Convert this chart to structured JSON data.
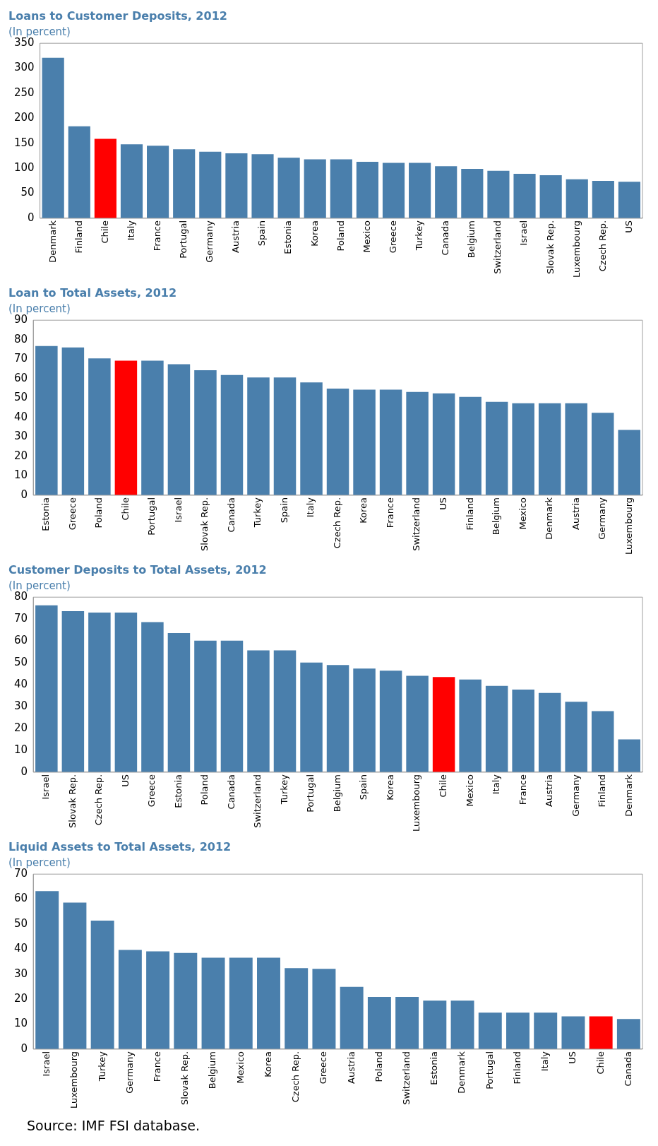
{
  "chart_data": [
    {
      "type": "bar",
      "title": "Loans to Customer Deposits, 2012",
      "subtitle": "(In percent)",
      "categories": [
        "Denmark",
        "Finland",
        "Chile",
        "Italy",
        "France",
        "Portugal",
        "Germany",
        "Austria",
        "Spain",
        "Estonia",
        "Korea",
        "Poland",
        "Mexico",
        "Greece",
        "Turkey",
        "Canada",
        "Belgium",
        "Switzerland",
        "Israel",
        "Slovak Rep.",
        "Luxembourg",
        "Czech Rep.",
        "US"
      ],
      "values": [
        321,
        184,
        159,
        148,
        145,
        138,
        133,
        130,
        128,
        121,
        118,
        118,
        113,
        111,
        111,
        104,
        99,
        95,
        89,
        86,
        78,
        75,
        73
      ],
      "colors": [
        "#4a7fac",
        "#4a7fac",
        "#ff0000",
        "#4a7fac",
        "#4a7fac",
        "#4a7fac",
        "#4a7fac",
        "#4a7fac",
        "#4a7fac",
        "#4a7fac",
        "#4a7fac",
        "#4a7fac",
        "#4a7fac",
        "#4a7fac",
        "#4a7fac",
        "#4a7fac",
        "#4a7fac",
        "#4a7fac",
        "#4a7fac",
        "#4a7fac",
        "#4a7fac",
        "#4a7fac",
        "#4a7fac"
      ],
      "ylim": [
        0,
        350
      ],
      "yticks": [
        0,
        50,
        100,
        150,
        200,
        250,
        300,
        350
      ],
      "grid": false
    },
    {
      "type": "bar",
      "title": "Loan to Total Assets, 2012",
      "subtitle": "(In percent)",
      "categories": [
        "Estonia",
        "Greece",
        "Poland",
        "Chile",
        "Portugal",
        "Israel",
        "Slovak Rep.",
        "Canada",
        "Turkey",
        "Spain",
        "Italy",
        "Czech Rep.",
        "Korea",
        "France",
        "Switzerland",
        "US",
        "Finland",
        "Belgium",
        "Mexico",
        "Denmark",
        "Austria",
        "Germany",
        "Luxembourg"
      ],
      "values": [
        76.7,
        76,
        70.4,
        69.2,
        69.2,
        67.4,
        64.3,
        61.8,
        60.6,
        60.6,
        58,
        54.8,
        54.3,
        54.3,
        53.1,
        52.4,
        50.6,
        48,
        47.3,
        47.3,
        47.3,
        42.4,
        33.6
      ],
      "colors": [
        "#4a7fac",
        "#4a7fac",
        "#4a7fac",
        "#ff0000",
        "#4a7fac",
        "#4a7fac",
        "#4a7fac",
        "#4a7fac",
        "#4a7fac",
        "#4a7fac",
        "#4a7fac",
        "#4a7fac",
        "#4a7fac",
        "#4a7fac",
        "#4a7fac",
        "#4a7fac",
        "#4a7fac",
        "#4a7fac",
        "#4a7fac",
        "#4a7fac",
        "#4a7fac",
        "#4a7fac",
        "#4a7fac"
      ],
      "ylim": [
        0,
        90
      ],
      "yticks": [
        0,
        10,
        20,
        30,
        40,
        50,
        60,
        70,
        80,
        90
      ],
      "grid": false
    },
    {
      "type": "bar",
      "title": "Customer Deposits to Total Assets, 2012",
      "subtitle": "(In percent)",
      "categories": [
        "Israel",
        "Slovak Rep.",
        "Czech Rep.",
        "US",
        "Greece",
        "Estonia",
        "Poland",
        "Canada",
        "Switzerland",
        "Turkey",
        "Portugal",
        "Belgium",
        "Spain",
        "Korea",
        "Luxembourg",
        "Chile",
        "Mexico",
        "Italy",
        "France",
        "Austria",
        "Germany",
        "Finland",
        "Denmark"
      ],
      "values": [
        76.3,
        73.6,
        73,
        73,
        68.6,
        63.6,
        60.1,
        60.1,
        55.7,
        55.7,
        50.1,
        49,
        47.4,
        46.4,
        44.1,
        43.5,
        42.4,
        39.5,
        37.8,
        36.2,
        32.2,
        27.9,
        15
      ],
      "colors": [
        "#4a7fac",
        "#4a7fac",
        "#4a7fac",
        "#4a7fac",
        "#4a7fac",
        "#4a7fac",
        "#4a7fac",
        "#4a7fac",
        "#4a7fac",
        "#4a7fac",
        "#4a7fac",
        "#4a7fac",
        "#4a7fac",
        "#4a7fac",
        "#4a7fac",
        "#ff0000",
        "#4a7fac",
        "#4a7fac",
        "#4a7fac",
        "#4a7fac",
        "#4a7fac",
        "#4a7fac",
        "#4a7fac"
      ],
      "ylim": [
        0,
        80
      ],
      "yticks": [
        0,
        10,
        20,
        30,
        40,
        50,
        60,
        70,
        80
      ],
      "grid": false
    },
    {
      "type": "bar",
      "title": "Liquid Assets to Total Assets, 2012",
      "subtitle": "(In percent)",
      "categories": [
        "Israel",
        "Luxembourg",
        "Turkey",
        "Germany",
        "France",
        "Slovak Rep.",
        "Belgium",
        "Mexico",
        "Korea",
        "Czech Rep.",
        "Greece",
        "Austria",
        "Poland",
        "Switzerland",
        "Estonia",
        "Denmark",
        "Portugal",
        "Finland",
        "Italy",
        "US",
        "Chile",
        "Canada"
      ],
      "values": [
        63.2,
        58.6,
        51.4,
        39.7,
        39.1,
        38.5,
        36.6,
        36.6,
        36.6,
        32.4,
        32.1,
        24.9,
        20.9,
        20.9,
        19.4,
        19.4,
        14.6,
        14.6,
        14.6,
        13.1,
        13.1,
        12.1
      ],
      "colors": [
        "#4a7fac",
        "#4a7fac",
        "#4a7fac",
        "#4a7fac",
        "#4a7fac",
        "#4a7fac",
        "#4a7fac",
        "#4a7fac",
        "#4a7fac",
        "#4a7fac",
        "#4a7fac",
        "#4a7fac",
        "#4a7fac",
        "#4a7fac",
        "#4a7fac",
        "#4a7fac",
        "#4a7fac",
        "#4a7fac",
        "#4a7fac",
        "#4a7fac",
        "#ff0000",
        "#4a7fac"
      ],
      "ylim": [
        0,
        70
      ],
      "yticks": [
        0,
        10,
        20,
        30,
        40,
        50,
        60,
        70
      ],
      "grid": false,
      "annotations": [
        "Source: IMF FSI database."
      ]
    }
  ]
}
